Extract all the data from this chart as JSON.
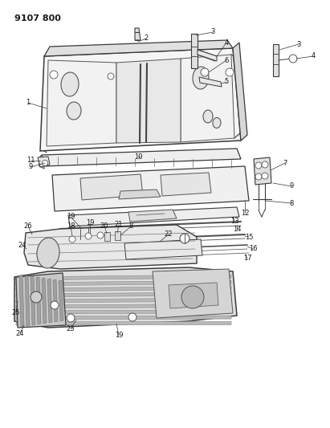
{
  "title": "9107 800",
  "bg_color": "#ffffff",
  "lc": "#3a3a3a",
  "tc": "#1a1a1a",
  "figsize": [
    4.11,
    5.33
  ],
  "dpi": 100
}
